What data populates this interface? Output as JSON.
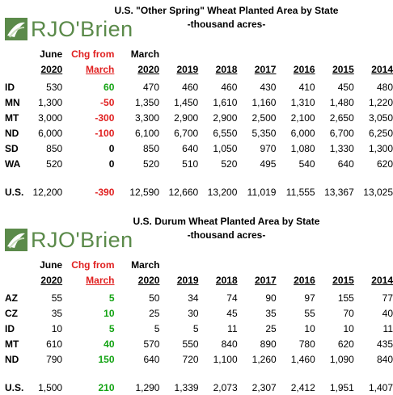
{
  "brand": {
    "logo_text": "RJO'Brien",
    "logo_color": "#5b8a4a"
  },
  "colors": {
    "positive": "#13a313",
    "negative": "#e02020"
  },
  "spring": {
    "title": "U.S. \"Other Spring\" Wheat Planted Area by State",
    "subtitle": "-thousand acres-",
    "headers": {
      "june_top": "June",
      "chg_top": "Chg from",
      "march_top": "March",
      "june": "2020",
      "chg": "March",
      "march": "2020",
      "years": [
        "2019",
        "2018",
        "2017",
        "2016",
        "2015",
        "2014"
      ]
    },
    "rows": [
      {
        "state": "ID",
        "june": "530",
        "chg": "60",
        "chg_sign": "pos",
        "march": "470",
        "years": [
          "460",
          "460",
          "430",
          "410",
          "450",
          "480"
        ]
      },
      {
        "state": "MN",
        "june": "1,300",
        "chg": "-50",
        "chg_sign": "neg",
        "march": "1,350",
        "years": [
          "1,450",
          "1,610",
          "1,160",
          "1,310",
          "1,480",
          "1,220"
        ]
      },
      {
        "state": "MT",
        "june": "3,000",
        "chg": "-300",
        "chg_sign": "neg",
        "march": "3,300",
        "years": [
          "2,900",
          "2,900",
          "2,500",
          "2,100",
          "2,650",
          "3,050"
        ]
      },
      {
        "state": "ND",
        "june": "6,000",
        "chg": "-100",
        "chg_sign": "neg",
        "march": "6,100",
        "years": [
          "6,700",
          "6,550",
          "5,350",
          "6,000",
          "6,700",
          "6,250"
        ]
      },
      {
        "state": "SD",
        "june": "850",
        "chg": "0",
        "chg_sign": "zero",
        "march": "850",
        "years": [
          "640",
          "1,050",
          "970",
          "1,080",
          "1,330",
          "1,300"
        ]
      },
      {
        "state": "WA",
        "june": "520",
        "chg": "0",
        "chg_sign": "zero",
        "march": "520",
        "years": [
          "510",
          "520",
          "495",
          "540",
          "640",
          "620"
        ]
      }
    ],
    "total": {
      "state": "U.S.",
      "june": "12,200",
      "chg": "-390",
      "chg_sign": "neg",
      "march": "12,590",
      "years": [
        "12,660",
        "13,200",
        "11,019",
        "11,555",
        "13,367",
        "13,025"
      ]
    }
  },
  "durum": {
    "title": "U.S. Durum Wheat Planted Area by State",
    "subtitle": "-thousand acres-",
    "headers": {
      "june_top": "June",
      "chg_top": "Chg from",
      "march_top": "March",
      "june": "2020",
      "chg": "March",
      "march": "2020",
      "years": [
        "2019",
        "2018",
        "2017",
        "2016",
        "2015",
        "2014"
      ]
    },
    "rows": [
      {
        "state": "AZ",
        "june": "55",
        "chg": "5",
        "chg_sign": "pos",
        "march": "50",
        "years": [
          "34",
          "74",
          "90",
          "97",
          "155",
          "77"
        ]
      },
      {
        "state": "CZ",
        "june": "35",
        "chg": "10",
        "chg_sign": "pos",
        "march": "25",
        "years": [
          "30",
          "45",
          "35",
          "55",
          "70",
          "40"
        ]
      },
      {
        "state": "ID",
        "june": "10",
        "chg": "5",
        "chg_sign": "pos",
        "march": "5",
        "years": [
          "5",
          "11",
          "25",
          "10",
          "10",
          "11"
        ]
      },
      {
        "state": "MT",
        "june": "610",
        "chg": "40",
        "chg_sign": "pos",
        "march": "570",
        "years": [
          "550",
          "840",
          "890",
          "780",
          "620",
          "435"
        ]
      },
      {
        "state": "ND",
        "june": "790",
        "chg": "150",
        "chg_sign": "pos",
        "march": "640",
        "years": [
          "720",
          "1,100",
          "1,260",
          "1,460",
          "1,090",
          "840"
        ]
      }
    ],
    "total": {
      "state": "U.S.",
      "june": "1,500",
      "chg": "210",
      "chg_sign": "pos",
      "march": "1,290",
      "years": [
        "1,339",
        "2,073",
        "2,307",
        "2,412",
        "1,951",
        "1,407"
      ]
    }
  }
}
